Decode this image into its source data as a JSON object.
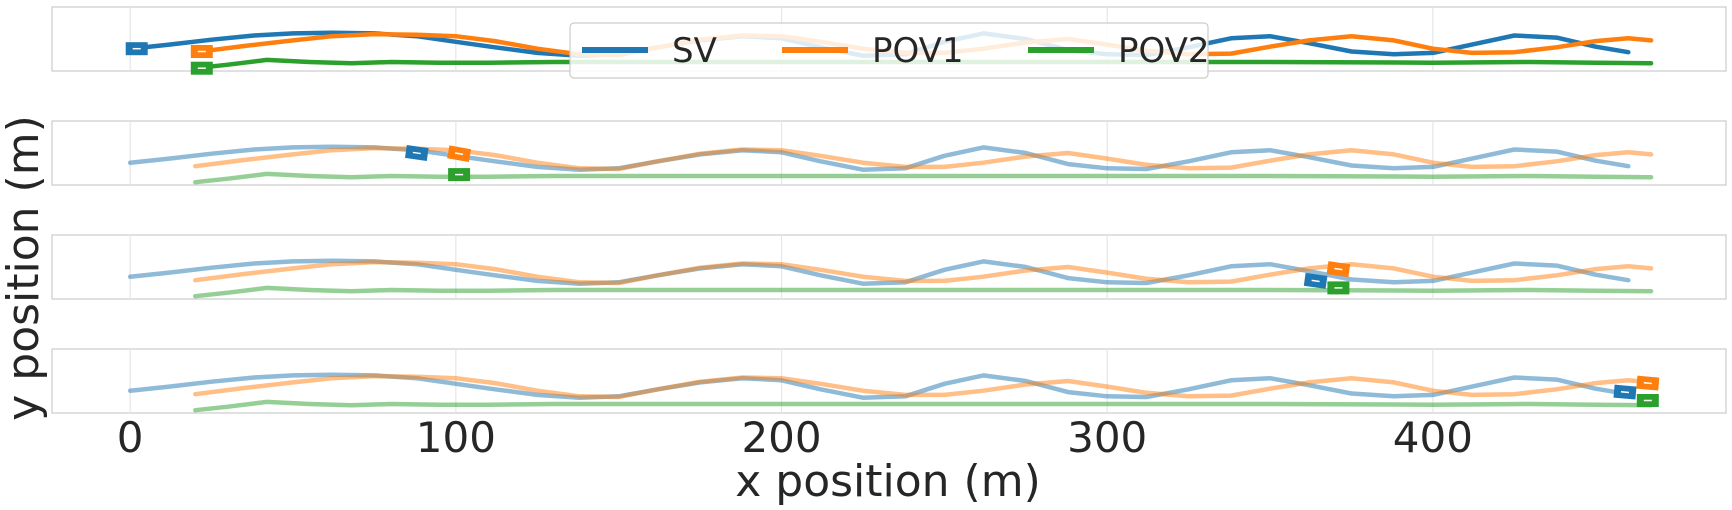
{
  "chart_data": {
    "type": "line",
    "xlabel": "x position (m)",
    "ylabel": "y position (m)",
    "xlim": [
      -24,
      490
    ],
    "ylim": [
      -3.2,
      6.0
    ],
    "xticks": [
      0,
      100,
      200,
      300,
      400
    ],
    "xtick_labels": [
      "0",
      "100",
      "200",
      "300",
      "400"
    ],
    "grid": true,
    "legend": {
      "placement": "upper center",
      "columns": 3
    },
    "series": [
      {
        "name": "SV",
        "color": "#1f77b4",
        "x": [
          0,
          12,
          25,
          38,
          50,
          62,
          75,
          88,
          100,
          112,
          125,
          138,
          150,
          162,
          175,
          188,
          200,
          212,
          225,
          238,
          250,
          262,
          275,
          288,
          300,
          312,
          325,
          338,
          350,
          362,
          375,
          388,
          400,
          412,
          425,
          438,
          450,
          460
        ],
        "y": [
          0.0,
          0.6,
          1.3,
          1.9,
          2.2,
          2.3,
          2.2,
          1.8,
          1.0,
          0.2,
          -0.6,
          -1.0,
          -0.8,
          0.2,
          1.2,
          1.8,
          1.5,
          0.2,
          -1.0,
          -0.8,
          1.0,
          2.2,
          1.4,
          -0.2,
          -0.8,
          -0.9,
          0.2,
          1.5,
          1.8,
          0.8,
          -0.4,
          -0.8,
          -0.6,
          0.6,
          1.9,
          1.6,
          0.3,
          -0.5
        ]
      },
      {
        "name": "POV1",
        "color": "#ff7f0e",
        "x": [
          20,
          35,
          50,
          62,
          75,
          88,
          100,
          112,
          125,
          138,
          150,
          162,
          175,
          188,
          200,
          212,
          225,
          238,
          250,
          262,
          275,
          288,
          300,
          312,
          325,
          338,
          350,
          362,
          375,
          388,
          400,
          412,
          425,
          438,
          450,
          460,
          467
        ],
        "y": [
          -0.5,
          0.4,
          1.2,
          1.8,
          2.1,
          2.0,
          1.8,
          1.1,
          0.0,
          -0.8,
          -0.9,
          0.2,
          1.3,
          1.9,
          1.8,
          1.0,
          0.0,
          -0.6,
          -0.6,
          0.0,
          0.9,
          1.4,
          0.6,
          -0.3,
          -0.8,
          -0.7,
          0.3,
          1.2,
          1.8,
          1.2,
          0.0,
          -0.6,
          -0.5,
          0.2,
          1.1,
          1.5,
          1.2
        ]
      },
      {
        "name": "POV2",
        "color": "#2ca02c",
        "x": [
          20,
          30,
          42,
          55,
          68,
          80,
          95,
          110,
          130,
          160,
          200,
          250,
          300,
          350,
          400,
          430,
          450,
          467
        ],
        "y": [
          -2.8,
          -2.3,
          -1.6,
          -1.9,
          -2.1,
          -1.9,
          -2.0,
          -2.0,
          -1.9,
          -1.9,
          -1.9,
          -1.9,
          -1.9,
          -1.9,
          -2.0,
          -1.9,
          -2.0,
          -2.1
        ]
      }
    ],
    "panels": [
      {
        "label": "panel-1",
        "opacity": 1.0,
        "markers": [
          {
            "series": "SV",
            "x": 2,
            "y": 0.0,
            "heading": 0
          },
          {
            "series": "POV1",
            "x": 22,
            "y": -0.4,
            "heading": 0
          },
          {
            "series": "POV2",
            "x": 22,
            "y": -2.8,
            "heading": 0
          }
        ]
      },
      {
        "label": "panel-2",
        "opacity": 0.5,
        "markers": [
          {
            "series": "SV",
            "x": 88,
            "y": 1.4,
            "heading": 8
          },
          {
            "series": "POV1",
            "x": 101,
            "y": 1.3,
            "heading": 10
          },
          {
            "series": "POV2",
            "x": 101,
            "y": -1.7,
            "heading": 0
          }
        ]
      },
      {
        "label": "panel-3",
        "opacity": 0.5,
        "markers": [
          {
            "series": "SV",
            "x": 364,
            "y": -0.6,
            "heading": 8
          },
          {
            "series": "POV1",
            "x": 371,
            "y": 1.1,
            "heading": 8
          },
          {
            "series": "POV2",
            "x": 371,
            "y": -1.6,
            "heading": 0
          }
        ]
      },
      {
        "label": "panel-4",
        "opacity": 0.5,
        "markers": [
          {
            "series": "SV",
            "x": 459,
            "y": -0.2,
            "heading": 5
          },
          {
            "series": "POV1",
            "x": 466,
            "y": 1.1,
            "heading": 5
          },
          {
            "series": "POV2",
            "x": 466,
            "y": -1.4,
            "heading": 0
          }
        ]
      }
    ]
  }
}
